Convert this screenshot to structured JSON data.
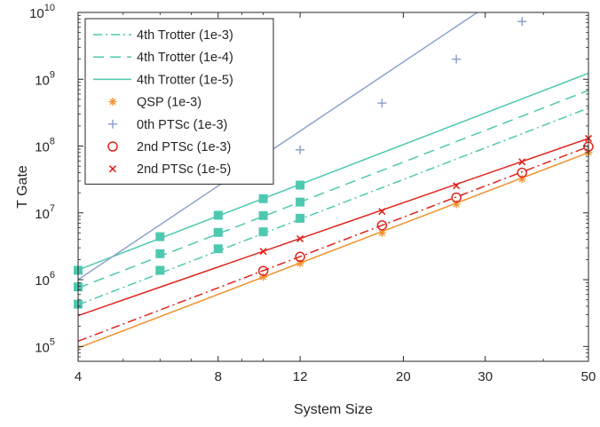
{
  "chart_data": {
    "type": "line",
    "xlabel": "System Size",
    "ylabel": "T Gate",
    "x_scale": "log",
    "y_scale": "log",
    "xlim": [
      4,
      50
    ],
    "ylim": [
      60000,
      10000000000
    ],
    "x_ticks": [
      4,
      8,
      12,
      20,
      30,
      50
    ],
    "x_tick_labels": [
      "4",
      "8",
      "12",
      "20",
      "30",
      "50"
    ],
    "y_ticks": [
      100000,
      1000000,
      10000000,
      100000000,
      1000000000,
      10000000000
    ],
    "y_tick_bases": [
      "10",
      "10",
      "10",
      "10",
      "10",
      "10"
    ],
    "y_tick_exponents": [
      "5",
      "6",
      "7",
      "8",
      "9",
      "10"
    ],
    "grid": false,
    "legend_position": "top-left",
    "series": [
      {
        "name": "4th Trotter (1e-3)",
        "color": "#4ec9b0",
        "line": "dashdot",
        "marker": "none",
        "fit": {
          "x": [
            4,
            50
          ],
          "y": [
            420000,
            370000000
          ]
        },
        "points": {
          "x": [
            4,
            6,
            8,
            10,
            12
          ],
          "y": [
            430000,
            1380000,
            2900000,
            5200000,
            8300000
          ]
        }
      },
      {
        "name": "4th Trotter (1e-4)",
        "color": "#4ec9b0",
        "line": "dashed",
        "marker": "none",
        "fit": {
          "x": [
            4,
            50
          ],
          "y": [
            750000,
            680000000
          ]
        },
        "points": {
          "x": [
            4,
            6,
            8,
            10,
            12
          ],
          "y": [
            780000,
            2450000,
            5100000,
            9100000,
            14500000
          ]
        }
      },
      {
        "name": "4th Trotter (1e-5)",
        "color": "#4ec9b0",
        "line": "solid",
        "marker": "none",
        "fit": {
          "x": [
            4,
            50
          ],
          "y": [
            1400000,
            1230000000
          ]
        },
        "points": {
          "x": [
            4,
            6,
            8,
            10,
            12
          ],
          "y": [
            1380000,
            4400000,
            9200000,
            16300000,
            26000000
          ]
        }
      },
      {
        "name": "QSP (1e-3)",
        "color": "#f0922e",
        "line": "solid",
        "marker": "asterisk",
        "fit": {
          "x": [
            4,
            50
          ],
          "y": [
            95000,
            80000000
          ]
        },
        "points": {
          "x": [
            10,
            12,
            18,
            26,
            36,
            50
          ],
          "y": [
            1100000,
            1750000,
            5000000,
            13500000,
            32000000,
            80000000
          ]
        }
      },
      {
        "name": "0th PTSc (1e-3)",
        "color": "#8ea3cc",
        "line": "solid",
        "marker": "plus",
        "fit": {
          "x": [
            4,
            50
          ],
          "y": [
            1000000,
            130000000000
          ]
        },
        "points": {
          "x": [
            10,
            12,
            18,
            26,
            36
          ],
          "y": [
            40000000,
            88000000,
            440000000,
            2000000000,
            7300000000
          ]
        }
      },
      {
        "name": "2nd PTSc (1e-3)",
        "color": "#e0241c",
        "line": "dashdot",
        "marker": "circle",
        "fit": {
          "x": [
            4,
            50
          ],
          "y": [
            120000,
            98000000
          ]
        },
        "points": {
          "x": [
            10,
            12,
            18,
            26,
            36,
            50
          ],
          "y": [
            1350000,
            2200000,
            6500000,
            17000000,
            40000000,
            98000000
          ]
        }
      },
      {
        "name": "2nd PTSc (1e-5)",
        "color": "#e0241c",
        "line": "solid",
        "marker": "x",
        "fit": {
          "x": [
            4,
            50
          ],
          "y": [
            290000,
            130000000
          ]
        },
        "points": {
          "x": [
            10,
            12,
            18,
            26,
            36,
            50
          ],
          "y": [
            2650000,
            4100000,
            10500000,
            25500000,
            58000000,
            130000000
          ]
        }
      }
    ],
    "square_marker_color": "#4ec9b0"
  }
}
